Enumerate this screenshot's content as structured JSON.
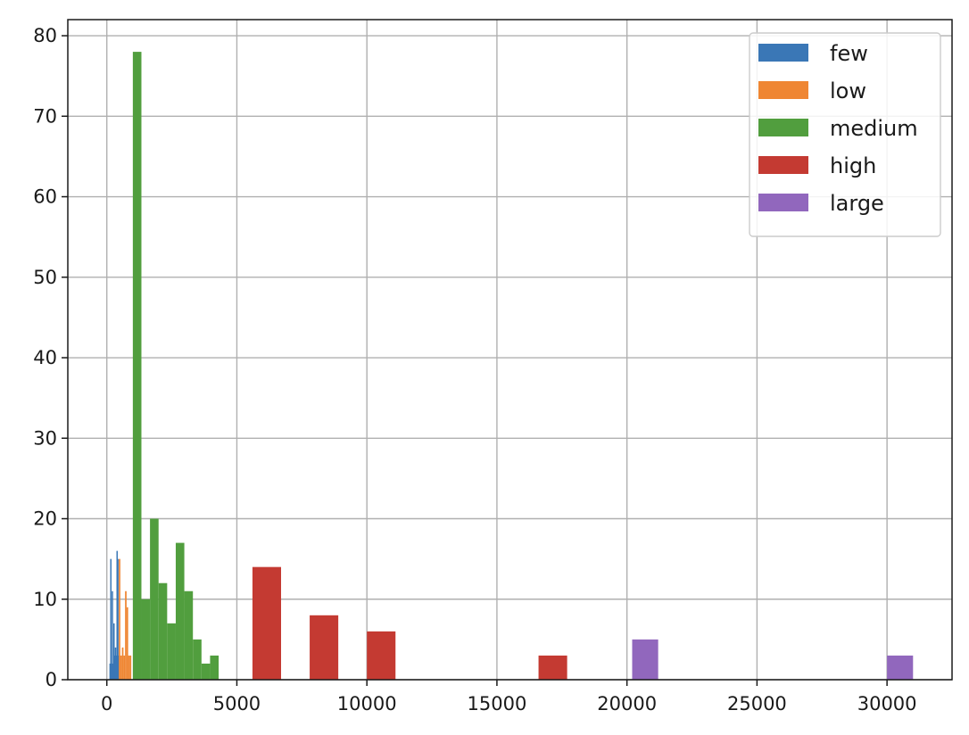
{
  "chart_data": {
    "type": "bar",
    "subtype": "histogram",
    "title": "",
    "xlabel": "",
    "ylabel": "",
    "xlim": [
      -1500,
      32500
    ],
    "ylim": [
      0,
      82
    ],
    "grid": true,
    "legend_position": "upper right",
    "x_ticks": [
      0,
      5000,
      10000,
      15000,
      20000,
      25000,
      30000
    ],
    "y_ticks": [
      0,
      10,
      20,
      30,
      40,
      50,
      60,
      70,
      80
    ],
    "series": [
      {
        "name": "few",
        "color": "#3a77b6",
        "bins": [
          {
            "x0": 100,
            "x1": 130,
            "value": 2
          },
          {
            "x0": 130,
            "x1": 160,
            "value": 15
          },
          {
            "x0": 160,
            "x1": 190,
            "value": 2
          },
          {
            "x0": 190,
            "x1": 220,
            "value": 11
          },
          {
            "x0": 220,
            "x1": 250,
            "value": 2
          },
          {
            "x0": 250,
            "x1": 280,
            "value": 7
          },
          {
            "x0": 280,
            "x1": 310,
            "value": 3
          },
          {
            "x0": 310,
            "x1": 340,
            "value": 4
          },
          {
            "x0": 340,
            "x1": 370,
            "value": 3
          },
          {
            "x0": 370,
            "x1": 400,
            "value": 16
          },
          {
            "x0": 400,
            "x1": 430,
            "value": 15
          },
          {
            "x0": 430,
            "x1": 460,
            "value": 3
          }
        ]
      },
      {
        "name": "low",
        "color": "#ef8633",
        "bins": [
          {
            "x0": 460,
            "x1": 520,
            "value": 15
          },
          {
            "x0": 520,
            "x1": 580,
            "value": 3
          },
          {
            "x0": 580,
            "x1": 640,
            "value": 4
          },
          {
            "x0": 640,
            "x1": 700,
            "value": 3
          },
          {
            "x0": 700,
            "x1": 760,
            "value": 11
          },
          {
            "x0": 760,
            "x1": 820,
            "value": 9
          },
          {
            "x0": 820,
            "x1": 880,
            "value": 3
          },
          {
            "x0": 880,
            "x1": 940,
            "value": 3
          }
        ]
      },
      {
        "name": "medium",
        "color": "#519e3e",
        "bins": [
          {
            "x0": 1000,
            "x1": 1330,
            "value": 78
          },
          {
            "x0": 1330,
            "x1": 1660,
            "value": 10
          },
          {
            "x0": 1660,
            "x1": 1990,
            "value": 20
          },
          {
            "x0": 1990,
            "x1": 2320,
            "value": 12
          },
          {
            "x0": 2320,
            "x1": 2650,
            "value": 7
          },
          {
            "x0": 2650,
            "x1": 2980,
            "value": 17
          },
          {
            "x0": 2980,
            "x1": 3310,
            "value": 11
          },
          {
            "x0": 3310,
            "x1": 3640,
            "value": 5
          },
          {
            "x0": 3640,
            "x1": 3970,
            "value": 2
          },
          {
            "x0": 3970,
            "x1": 4300,
            "value": 3
          }
        ]
      },
      {
        "name": "high",
        "color": "#c43a32",
        "bins": [
          {
            "x0": 5600,
            "x1": 6700,
            "value": 14
          },
          {
            "x0": 6700,
            "x1": 7800,
            "value": 0
          },
          {
            "x0": 7800,
            "x1": 8900,
            "value": 8
          },
          {
            "x0": 8900,
            "x1": 10000,
            "value": 0
          },
          {
            "x0": 10000,
            "x1": 11100,
            "value": 6
          },
          {
            "x0": 11100,
            "x1": 12200,
            "value": 0
          },
          {
            "x0": 12200,
            "x1": 13300,
            "value": 0
          },
          {
            "x0": 13300,
            "x1": 14400,
            "value": 0
          },
          {
            "x0": 14400,
            "x1": 15500,
            "value": 0
          },
          {
            "x0": 15500,
            "x1": 16600,
            "value": 0
          },
          {
            "x0": 16600,
            "x1": 17700,
            "value": 3
          }
        ]
      },
      {
        "name": "large",
        "color": "#9167bd",
        "bins": [
          {
            "x0": 20200,
            "x1": 21200,
            "value": 5
          },
          {
            "x0": 30000,
            "x1": 31000,
            "value": 3
          }
        ]
      }
    ]
  }
}
